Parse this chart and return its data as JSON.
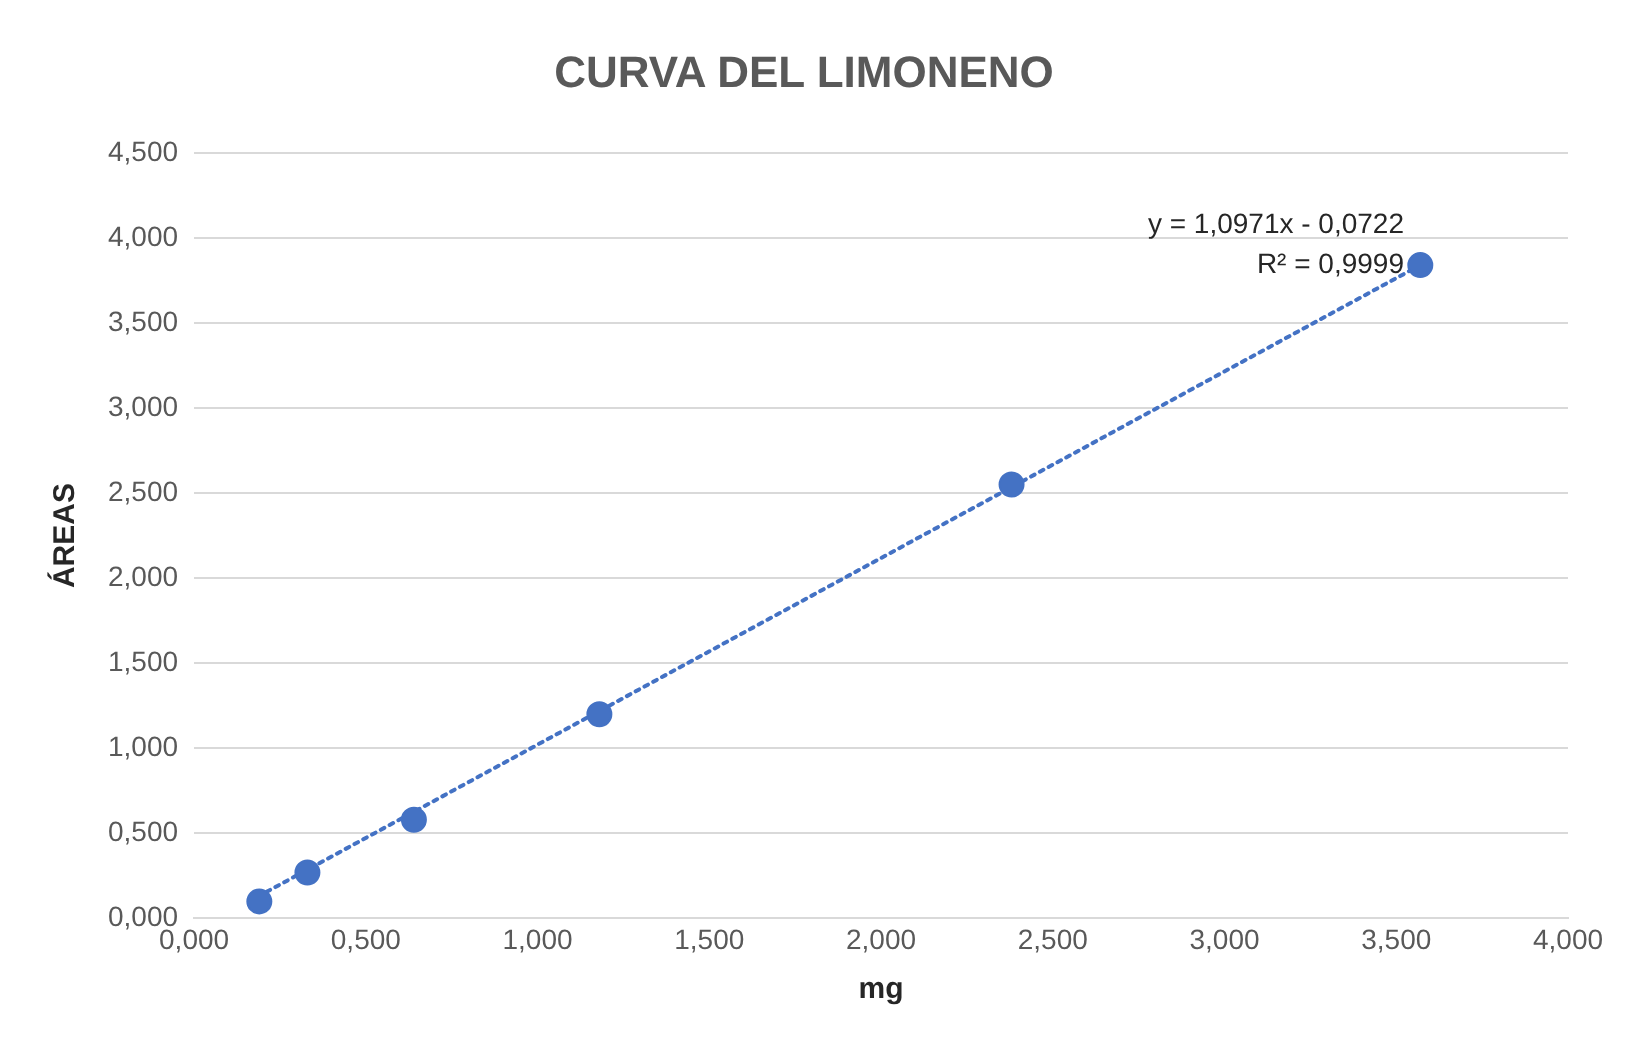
{
  "chart_data": {
    "type": "scatter",
    "title": "CURVA DEL LIMONENO",
    "xlabel": "mg",
    "ylabel": "ÁREAS",
    "xlim": [
      0,
      4
    ],
    "ylim": [
      0,
      4.5
    ],
    "xticks": [
      {
        "value": 0,
        "label": "0,000"
      },
      {
        "value": 0.5,
        "label": "0,500"
      },
      {
        "value": 1,
        "label": "1,000"
      },
      {
        "value": 1.5,
        "label": "1,500"
      },
      {
        "value": 2,
        "label": "2,000"
      },
      {
        "value": 2.5,
        "label": "2,500"
      },
      {
        "value": 3,
        "label": "3,000"
      },
      {
        "value": 3.5,
        "label": "3,500"
      },
      {
        "value": 4,
        "label": "4,000"
      }
    ],
    "yticks": [
      {
        "value": 0,
        "label": "0,000"
      },
      {
        "value": 0.5,
        "label": "0,500"
      },
      {
        "value": 1,
        "label": "1,000"
      },
      {
        "value": 1.5,
        "label": "1,500"
      },
      {
        "value": 2,
        "label": "2,000"
      },
      {
        "value": 2.5,
        "label": "2,500"
      },
      {
        "value": 3,
        "label": "3,000"
      },
      {
        "value": 3.5,
        "label": "3,500"
      },
      {
        "value": 4,
        "label": "4,000"
      },
      {
        "value": 4.5,
        "label": "4,500"
      }
    ],
    "grid": "y",
    "legend": false,
    "marker": "circle",
    "series": [
      {
        "color": "#4472c4",
        "x": [
          0.19,
          0.33,
          0.64,
          1.18,
          2.38,
          3.57
        ],
        "values": [
          0.1,
          0.27,
          0.58,
          1.2,
          2.55,
          3.84
        ]
      },
      {
        "type": "line",
        "color": "#4472c4",
        "line_style": "dotted",
        "marker": "none",
        "x": [
          0.16,
          3.57
        ],
        "values": [
          0.1,
          3.84
        ]
      }
    ],
    "annotations": [
      "y = 1,0971x - 0,0722",
      "R² = 0,9999"
    ]
  }
}
